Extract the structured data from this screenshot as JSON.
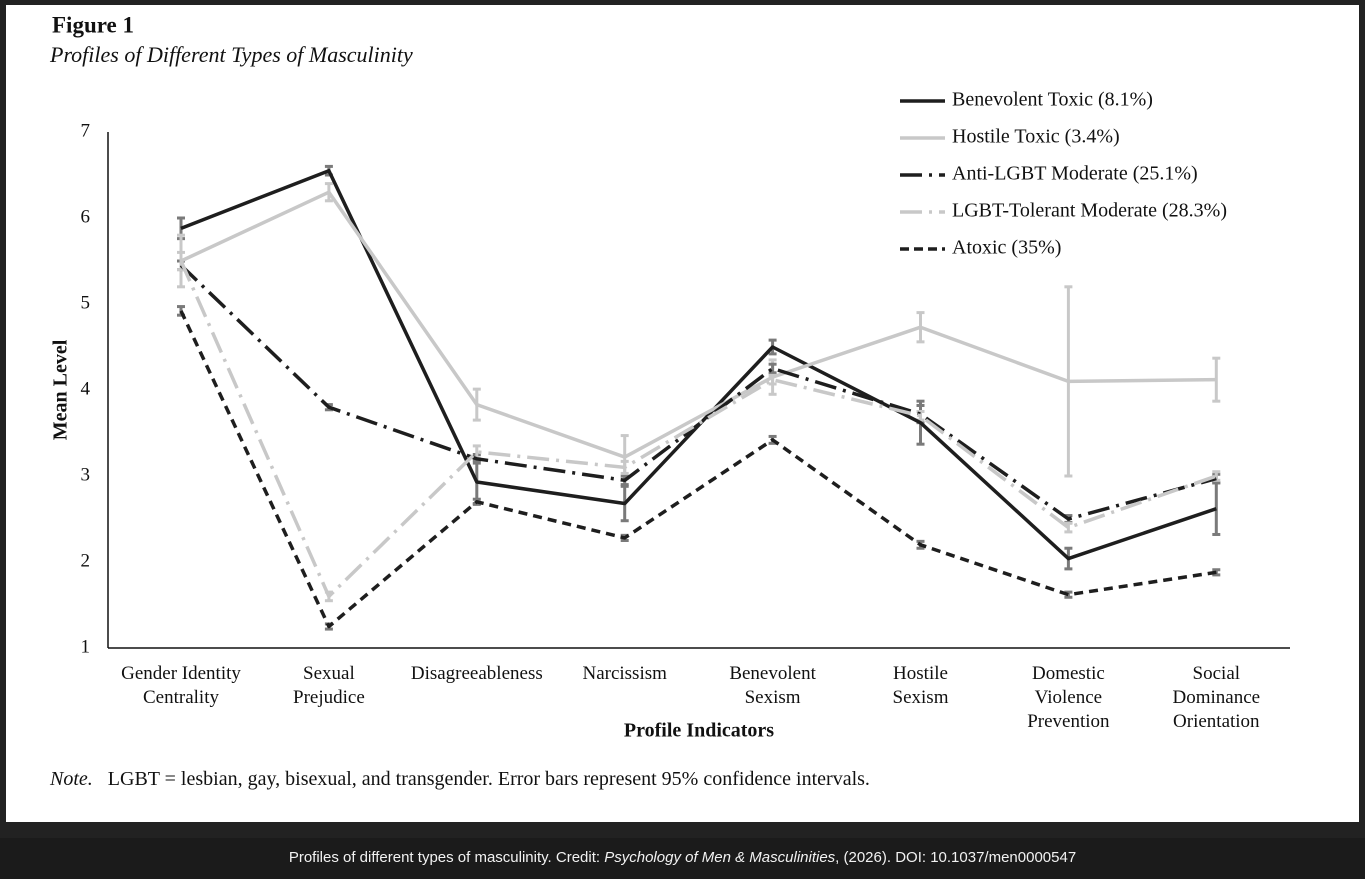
{
  "chart_data": {
    "type": "line",
    "figure_label": "Figure 1",
    "title": "Profiles of Different Types of Masculinity",
    "x_label": "Profile Indicators",
    "y_label": "Mean Level",
    "categories": [
      "Gender Identity\nCentrality",
      "Sexual\nPrejudice",
      "Disagreeableness",
      "Narcissism",
      "Benevolent\nSexism",
      "Hostile\nSexism",
      "Domestic\nViolence\nPrevention",
      "Social\nDominance\nOrientation"
    ],
    "ylim": [
      1,
      7
    ],
    "yticks": [
      1,
      2,
      3,
      4,
      5,
      6,
      7
    ],
    "grid": false,
    "legend": "upper right",
    "errorbar_color": "#7a7a7a",
    "series": [
      {
        "name": "Benevolent Toxic (8.1%)",
        "color": "#1e1e1e",
        "dash": "solid",
        "values": [
          5.88,
          6.55,
          2.93,
          2.68,
          4.5,
          3.62,
          2.04,
          2.62
        ],
        "errors": [
          0.12,
          0.05,
          0.25,
          0.2,
          0.08,
          0.25,
          0.12,
          0.3
        ]
      },
      {
        "name": "Hostile Toxic (3.4%)",
        "color": "#c8c8c8",
        "dash": "solid",
        "values": [
          5.5,
          6.3,
          3.83,
          3.22,
          4.15,
          4.73,
          4.1,
          4.12
        ],
        "errors": [
          0.3,
          0.1,
          0.18,
          0.25,
          0.2,
          0.17,
          1.1,
          0.25
        ]
      },
      {
        "name": "Anti-LGBT Moderate (25.1%)",
        "color": "#1e1e1e",
        "dash": "dashdot",
        "values": [
          5.45,
          3.8,
          3.2,
          2.95,
          4.25,
          3.72,
          2.5,
          2.97
        ],
        "errors": [
          0.05,
          0.03,
          0.05,
          0.05,
          0.05,
          0.1,
          0.04,
          0.05
        ]
      },
      {
        "name": "LGBT-Tolerant Moderate (28.3%)",
        "color": "#c8c8c8",
        "dash": "dashdot",
        "values": [
          5.5,
          1.6,
          3.28,
          3.1,
          4.12,
          3.7,
          2.4,
          3.0
        ],
        "errors": [
          0.1,
          0.05,
          0.07,
          0.07,
          0.05,
          0.05,
          0.05,
          0.05
        ]
      },
      {
        "name": "Atoxic (35%)",
        "color": "#1e1e1e",
        "dash": "dashed",
        "values": [
          4.92,
          1.25,
          2.7,
          2.28,
          3.42,
          2.2,
          1.62,
          1.88
        ],
        "errors": [
          0.05,
          0.03,
          0.03,
          0.03,
          0.04,
          0.04,
          0.03,
          0.03
        ]
      }
    ],
    "note": {
      "label": "Note.",
      "text": "LGBT = lesbian, gay, bisexual, and transgender. Error bars represent 95% confidence intervals."
    }
  },
  "caption": {
    "before": "Profiles of different types of masculinity. Credit: ",
    "source": "Psychology of Men & Masculinities",
    "after": ", (2026). DOI: 10.1037/men0000547"
  }
}
